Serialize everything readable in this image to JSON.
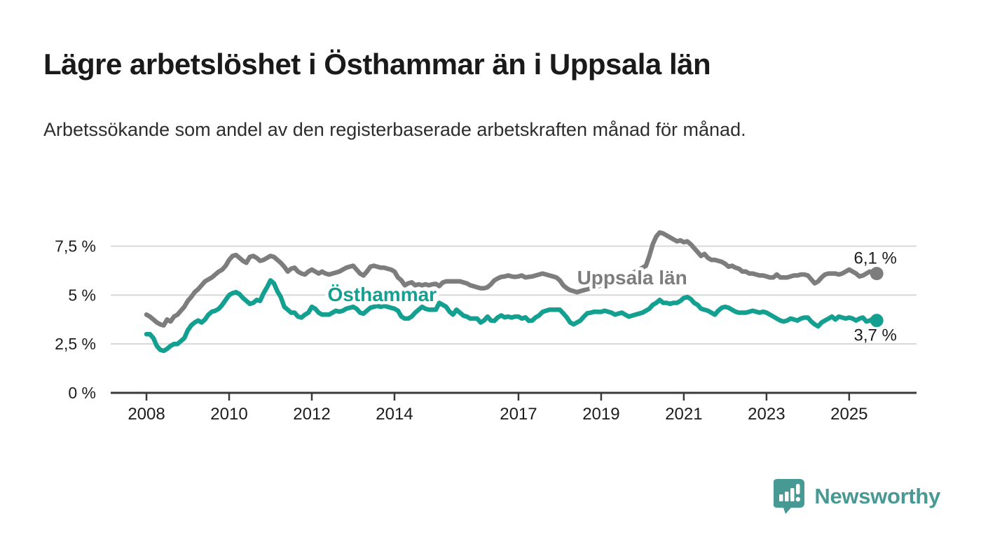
{
  "header": {
    "title": "Lägre arbetslöshet i Östhammar än i Uppsala län",
    "subtitle": "Arbetssökande som andel av den registerbaserade arbetskraften månad för månad."
  },
  "branding": {
    "wordmark": "Newsworthy",
    "icon": "newsworthy-logo-icon",
    "color": "#479a94"
  },
  "chart_data": {
    "type": "line",
    "title": "Lägre arbetslöshet i Östhammar än i Uppsala län",
    "subtitle": "Arbetssökande som andel av den registerbaserade arbetskraften månad för månad.",
    "xlabel": "",
    "ylabel": "",
    "x_start_year": 2008,
    "x_step": "monthly",
    "x_end_label": "2025-09",
    "xlim": [
      2007.135,
      2026.63
    ],
    "ylim": [
      0,
      8.45
    ],
    "grid": true,
    "grid_color": "#d8d8d8",
    "axis_color": "#3a3a3a",
    "tick_label_color": "#1c1c1c",
    "yticks": [
      {
        "value": 0,
        "label": "0 %"
      },
      {
        "value": 2.5,
        "label": "2,5 %"
      },
      {
        "value": 5,
        "label": "5 %"
      },
      {
        "value": 7.5,
        "label": "7,5 %"
      }
    ],
    "xticks": [
      {
        "value": 2008,
        "label": "2008"
      },
      {
        "value": 2010,
        "label": "2010"
      },
      {
        "value": 2012,
        "label": "2012"
      },
      {
        "value": 2014,
        "label": "2014"
      },
      {
        "value": 2017,
        "label": "2017"
      },
      {
        "value": 2019,
        "label": "2019"
      },
      {
        "value": 2021,
        "label": "2021"
      },
      {
        "value": 2023,
        "label": "2023"
      },
      {
        "value": 2025,
        "label": "2025"
      }
    ],
    "legend_position": "inline-labels",
    "series": [
      {
        "name": "Uppsala län",
        "color": "#7d7d7d",
        "end_label": "6,1 %",
        "end_value": 6.1,
        "label_at": {
          "x": 2019.75,
          "y": 5.9
        },
        "end_label_side": "above",
        "values": [
          4.0,
          3.9,
          3.75,
          3.6,
          3.5,
          3.45,
          3.75,
          3.65,
          3.9,
          4.0,
          4.2,
          4.4,
          4.7,
          4.9,
          5.15,
          5.3,
          5.5,
          5.7,
          5.8,
          5.9,
          6.05,
          6.2,
          6.3,
          6.5,
          6.8,
          7.0,
          7.05,
          6.9,
          6.75,
          6.65,
          6.95,
          7.0,
          6.9,
          6.75,
          6.8,
          6.9,
          7.0,
          6.95,
          6.8,
          6.65,
          6.45,
          6.2,
          6.35,
          6.4,
          6.2,
          6.1,
          6.05,
          6.2,
          6.3,
          6.2,
          6.1,
          6.2,
          6.1,
          6.05,
          6.1,
          6.15,
          6.2,
          6.3,
          6.4,
          6.45,
          6.5,
          6.3,
          6.1,
          6.0,
          6.2,
          6.45,
          6.5,
          6.45,
          6.4,
          6.4,
          6.35,
          6.3,
          6.2,
          5.9,
          5.75,
          5.5,
          5.6,
          5.65,
          5.5,
          5.55,
          5.5,
          5.55,
          5.5,
          5.55,
          5.57,
          5.46,
          5.64,
          5.7,
          5.7,
          5.7,
          5.7,
          5.7,
          5.65,
          5.6,
          5.5,
          5.45,
          5.4,
          5.35,
          5.35,
          5.4,
          5.55,
          5.75,
          5.85,
          5.93,
          5.95,
          6.0,
          5.95,
          5.93,
          5.95,
          6.0,
          5.9,
          5.93,
          5.95,
          6.0,
          6.05,
          6.1,
          6.05,
          6.0,
          5.95,
          5.9,
          5.75,
          5.5,
          5.35,
          5.25,
          5.2,
          5.15,
          5.2,
          5.25,
          5.3,
          5.35,
          5.4,
          5.45,
          5.5,
          5.55,
          5.6,
          5.65,
          5.7,
          5.8,
          5.9,
          5.95,
          6.0,
          6.1,
          6.2,
          6.3,
          6.4,
          6.5,
          7.0,
          7.6,
          8.0,
          8.2,
          8.15,
          8.05,
          7.95,
          7.85,
          7.75,
          7.8,
          7.7,
          7.75,
          7.6,
          7.4,
          7.2,
          7.0,
          7.1,
          6.9,
          6.8,
          6.8,
          6.75,
          6.7,
          6.6,
          6.45,
          6.5,
          6.4,
          6.35,
          6.2,
          6.2,
          6.1,
          6.1,
          6.05,
          6.0,
          6.0,
          5.95,
          5.9,
          5.9,
          6.05,
          5.9,
          5.9,
          5.9,
          5.95,
          6.0,
          6.0,
          6.05,
          6.05,
          6.0,
          5.8,
          5.6,
          5.7,
          5.9,
          6.05,
          6.1,
          6.1,
          6.1,
          6.05,
          6.1,
          6.2,
          6.3,
          6.2,
          6.1,
          5.95,
          6.0,
          6.1,
          6.2,
          6.15,
          6.1
        ]
      },
      {
        "name": "Östhammar",
        "color": "#14a091",
        "end_label": "3,7 %",
        "end_value": 3.7,
        "label_at": {
          "x": 2013.7,
          "y": 5.05
        },
        "end_label_side": "below",
        "values": [
          3.0,
          3.0,
          2.8,
          2.4,
          2.2,
          2.15,
          2.25,
          2.4,
          2.5,
          2.5,
          2.65,
          2.8,
          3.2,
          3.45,
          3.6,
          3.7,
          3.6,
          3.75,
          4.0,
          4.15,
          4.2,
          4.3,
          4.5,
          4.75,
          5.0,
          5.1,
          5.15,
          5.05,
          4.85,
          4.7,
          4.55,
          4.6,
          4.75,
          4.7,
          5.1,
          5.4,
          5.75,
          5.6,
          5.2,
          4.9,
          4.4,
          4.25,
          4.1,
          4.1,
          3.9,
          3.85,
          4.0,
          4.1,
          4.4,
          4.3,
          4.1,
          4.0,
          4.0,
          4.0,
          4.1,
          4.2,
          4.15,
          4.2,
          4.3,
          4.35,
          4.4,
          4.3,
          4.1,
          4.05,
          4.2,
          4.35,
          4.4,
          4.45,
          4.4,
          4.45,
          4.4,
          4.35,
          4.3,
          4.2,
          3.9,
          3.8,
          3.8,
          3.9,
          4.1,
          4.25,
          4.4,
          4.3,
          4.25,
          4.25,
          4.25,
          4.6,
          4.5,
          4.4,
          4.15,
          4.0,
          4.25,
          4.1,
          3.95,
          3.9,
          3.8,
          3.8,
          3.8,
          3.6,
          3.7,
          3.9,
          3.7,
          3.68,
          3.86,
          3.96,
          3.86,
          3.9,
          3.85,
          3.9,
          3.9,
          3.8,
          3.86,
          3.68,
          3.7,
          3.86,
          3.96,
          4.14,
          4.2,
          4.25,
          4.25,
          4.25,
          4.25,
          4.07,
          3.86,
          3.6,
          3.5,
          3.6,
          3.7,
          3.9,
          4.07,
          4.1,
          4.15,
          4.14,
          4.14,
          4.2,
          4.15,
          4.1,
          4.0,
          4.05,
          4.1,
          4.0,
          3.9,
          3.95,
          4.0,
          4.05,
          4.1,
          4.2,
          4.3,
          4.5,
          4.6,
          4.75,
          4.6,
          4.6,
          4.55,
          4.6,
          4.6,
          4.7,
          4.85,
          4.9,
          4.8,
          4.6,
          4.5,
          4.3,
          4.25,
          4.2,
          4.1,
          4.0,
          4.2,
          4.35,
          4.4,
          4.35,
          4.25,
          4.15,
          4.1,
          4.1,
          4.1,
          4.15,
          4.2,
          4.15,
          4.1,
          4.15,
          4.1,
          4.0,
          3.9,
          3.8,
          3.7,
          3.65,
          3.7,
          3.8,
          3.75,
          3.7,
          3.8,
          3.85,
          3.85,
          3.65,
          3.5,
          3.4,
          3.6,
          3.7,
          3.8,
          3.9,
          3.75,
          3.9,
          3.85,
          3.8,
          3.85,
          3.8,
          3.7,
          3.8,
          3.85,
          3.65,
          3.7,
          3.8,
          3.7
        ]
      }
    ]
  }
}
